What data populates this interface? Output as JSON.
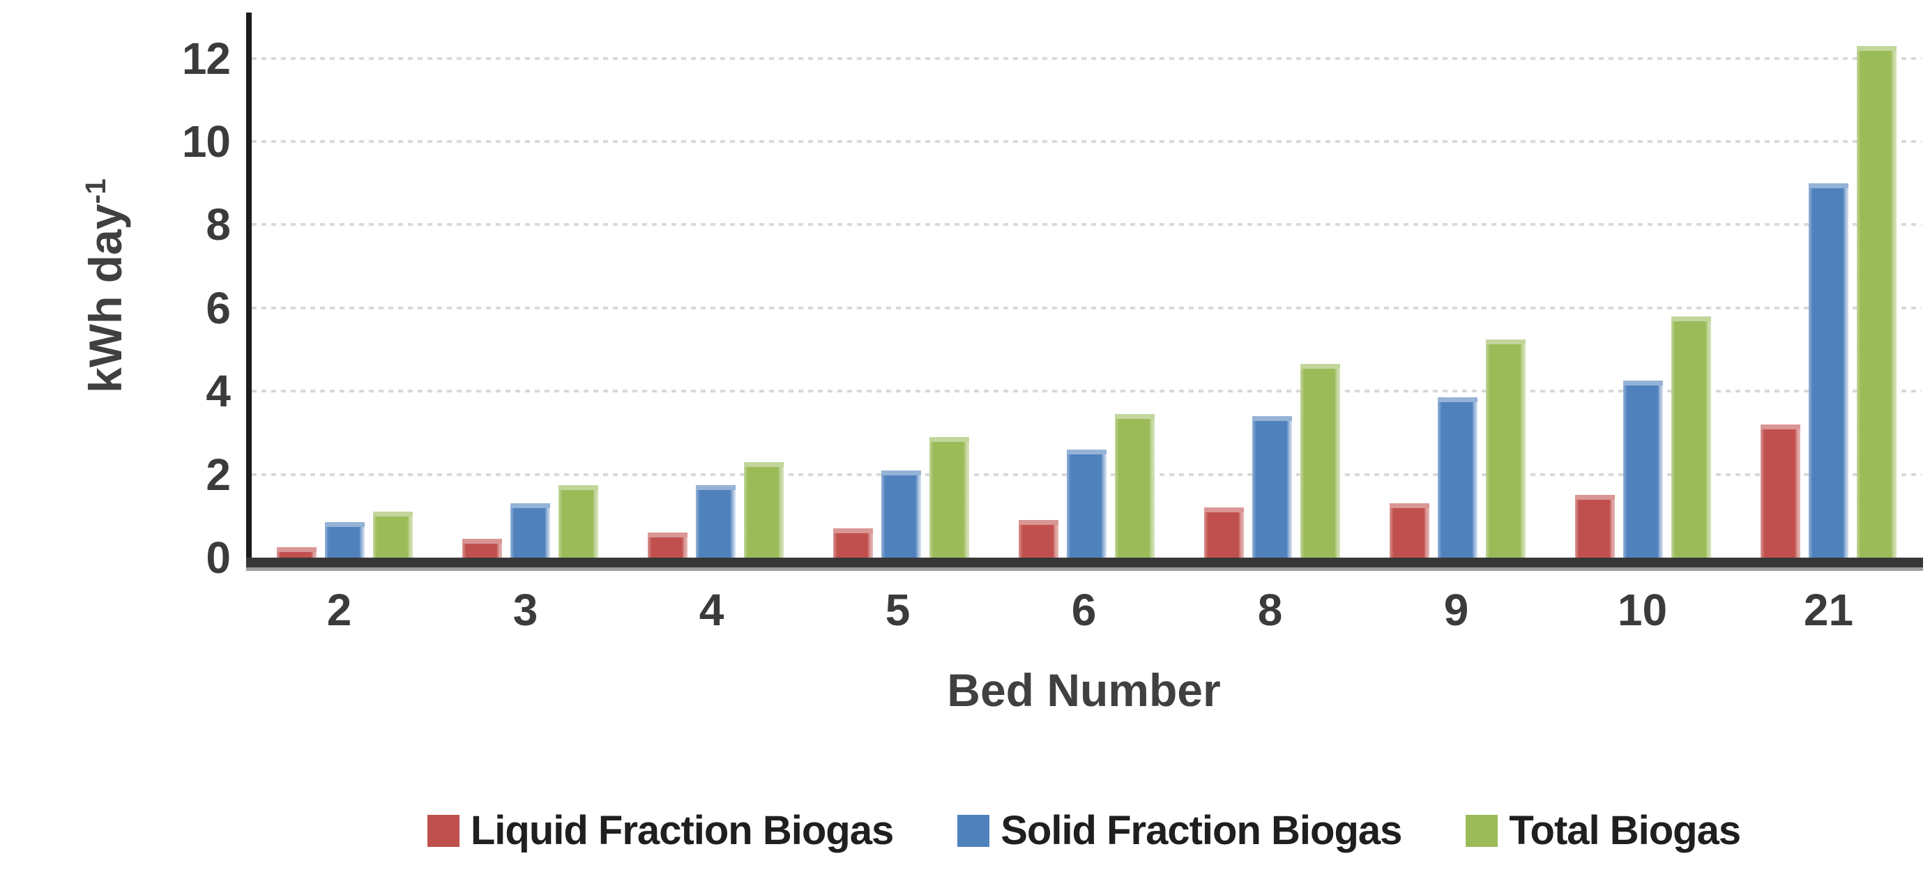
{
  "chart_data": {
    "type": "bar",
    "title": "",
    "xlabel": "Bed Number",
    "ylabel_text": "kWh day",
    "ylabel_sup": "-1",
    "categories": [
      "2",
      "3",
      "4",
      "5",
      "6",
      "8",
      "9",
      "10",
      "21"
    ],
    "series": [
      {
        "name": "Liquid Fraction Biogas",
        "color": "#C0504D",
        "color_top": "#D99694",
        "color_edge": "#E6B9B8",
        "values": [
          0.25,
          0.45,
          0.6,
          0.7,
          0.9,
          1.2,
          1.3,
          1.5,
          3.2
        ]
      },
      {
        "name": "Solid Fraction Biogas",
        "color": "#4F81BD",
        "color_top": "#95B3D7",
        "color_edge": "#DCE6F2",
        "values": [
          0.85,
          1.3,
          1.75,
          2.1,
          2.6,
          3.4,
          3.85,
          4.25,
          9.0
        ]
      },
      {
        "name": "Total Biogas",
        "color": "#9BBB59",
        "color_top": "#C2D69B",
        "color_edge": "#D7E4BD",
        "values": [
          1.1,
          1.75,
          2.3,
          2.9,
          3.45,
          4.65,
          5.25,
          5.8,
          12.3
        ]
      }
    ],
    "yticks": [
      0,
      2,
      4,
      6,
      8,
      10,
      12
    ],
    "ylim": [
      0,
      13.1
    ],
    "grid": "horizontal-dotted",
    "legend_position": "bottom",
    "colors": {
      "background": "#FFFFFF",
      "axis_line": "#1C1C1C",
      "baseline": "#373737",
      "baseline_shadow": "#9C9C9C",
      "gridline": "#D9D9D9",
      "tick_text": "#3B3B3B",
      "axis_title_text": "#404040",
      "legend_text": "#1F1F1F"
    }
  }
}
